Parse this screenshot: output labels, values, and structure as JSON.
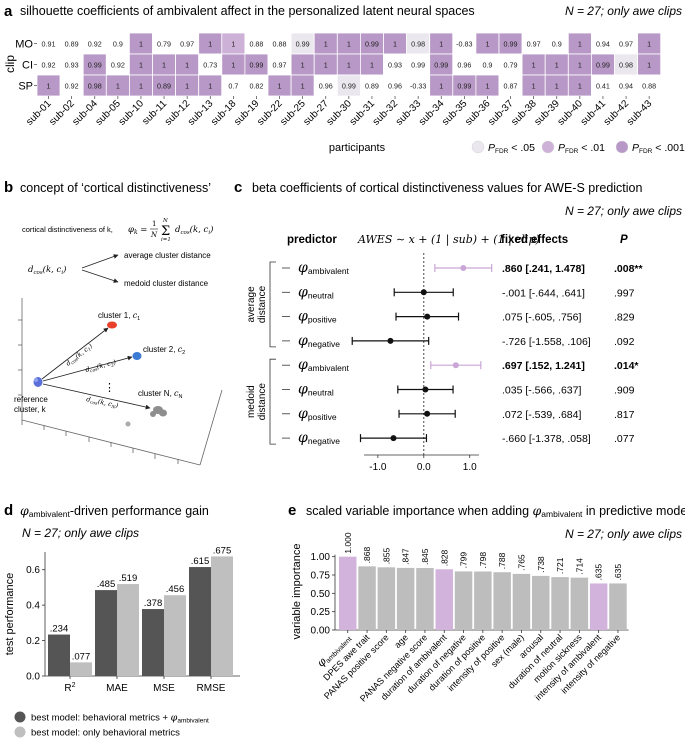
{
  "panel_a": {
    "letter": "a",
    "title": "silhouette coefficients of ambivalent affect in the personalized latent neural spaces",
    "note": "N = 27; only awe clips",
    "ylabel": "clip",
    "xlabel": "participants",
    "rows": [
      "MO",
      "CI",
      "SP"
    ],
    "participants": [
      "sub-01",
      "sub-02",
      "sub-04",
      "sub-05",
      "sub-10",
      "sub-11",
      "sub-12",
      "sub-13",
      "sub-18",
      "sub-19",
      "sub-22",
      "sub-25",
      "sub-27",
      "sub-30",
      "sub-31",
      "sub-32",
      "sub-33",
      "sub-34",
      "sub-35",
      "sub-36",
      "sub-37",
      "sub-38",
      "sub-39",
      "sub-40",
      "sub-41",
      "sub-42",
      "sub-43"
    ],
    "values": [
      [
        "0.91",
        "0.89",
        "0.92",
        "0.9",
        "1",
        "0.79",
        "0.97",
        "1",
        "1",
        "0.88",
        "0.88",
        "0.99",
        "1",
        "1",
        "0.99",
        "1",
        "0.98",
        "1",
        "-0.83",
        "1",
        "0.99",
        "0.97",
        "0.9",
        "1",
        "0.94",
        "0.97",
        "1"
      ],
      [
        "0.92",
        "0.93",
        "0.99",
        "0.92",
        "1",
        "1",
        "1",
        "0.73",
        "1",
        "0.99",
        "0.97",
        "1",
        "1",
        "1",
        "1",
        "0.93",
        "0.99",
        "0.99",
        "0.96",
        "0.9",
        "0.79",
        "1",
        "1",
        "1",
        "0.99",
        "0.98",
        "1"
      ],
      [
        "1",
        "0.92",
        "0.98",
        "1",
        "1",
        "0.89",
        "1",
        "1",
        "0.7",
        "0.82",
        "1",
        "1",
        "0.96",
        "0.99",
        "0.89",
        "0.96",
        "-0.33",
        "1",
        "0.99",
        "1",
        "0.87",
        "1",
        "1",
        "1",
        "0.41",
        "0.94",
        "0.88"
      ]
    ],
    "levels": [
      [
        "0",
        "0",
        "0",
        "0",
        "3",
        "0",
        "0",
        "3",
        "2",
        "0",
        "0",
        "1",
        "3",
        "3",
        "3",
        "3",
        "1",
        "3",
        "0",
        "3",
        "3",
        "0",
        "0",
        "3",
        "0",
        "0",
        "3"
      ],
      [
        "0",
        "0",
        "3",
        "0",
        "3",
        "3",
        "3",
        "0",
        "3",
        "3",
        "0",
        "3",
        "3",
        "3",
        "3",
        "0",
        "0",
        "3",
        "0",
        "0",
        "0",
        "3",
        "3",
        "3",
        "3",
        "1",
        "3"
      ],
      [
        "3",
        "0",
        "3",
        "3",
        "3",
        "3",
        "3",
        "3",
        "0",
        "0",
        "3",
        "3",
        "0",
        "1",
        "0",
        "0",
        "0",
        "3",
        "3",
        "3",
        "0",
        "3",
        "3",
        "3",
        "0",
        "0",
        "0"
      ]
    ],
    "colors": [
      "#ffffff",
      "#ebe7ee",
      "#cdb1d7",
      "#b898c6"
    ],
    "legend": [
      {
        "label_pre": "P",
        "sub": "FDR",
        "label_post": " < .05",
        "color": "#ebe7ee"
      },
      {
        "label_pre": "P",
        "sub": "FDR",
        "label_post": " < .01",
        "color": "#cdb1d7"
      },
      {
        "label_pre": "P",
        "sub": "FDR",
        "label_post": " < .001",
        "color": "#b898c6"
      }
    ]
  },
  "panel_b": {
    "letter": "b",
    "title": "concept of ‘cortical distinctiveness’",
    "formula": "cortical distinctiveness of k, φk = (1/N) Σ dcos(k, ci)",
    "formula_lead": "cortical distinctiveness of k, ",
    "dist": "dcos(k, ci)",
    "avg_label": "average cluster distance",
    "med_label": "medoid cluster distance",
    "cluster1": "cluster 1, c1",
    "cluster2": "cluster 2, c2",
    "clusterN": "cluster N, cN",
    "ref1": "reference",
    "ref2": "cluster, k",
    "d1": "dcos(k, c1)",
    "d2": "dcos(k, c2)",
    "dN": "dcos(k, cN)",
    "dots": "⋮"
  },
  "panel_c": {
    "letter": "c",
    "title": "beta coefficients of cortical distinctiveness values for AWE-S prediction",
    "note": "N = 27; only awe clips",
    "head_predictor": "predictor",
    "model": "AWES ~ x + (1 | sub) + (1 | clip)",
    "head_fixed": "fixed effects",
    "head_p": "P",
    "group1": "average distance",
    "group2": "medoid distance",
    "rows": [
      {
        "pred": "ambivalent",
        "est": 0.86,
        "lo": 0.241,
        "hi": 1.478,
        "fixed": ".860 [.241, 1.478]",
        "p": ".008**",
        "sig": true
      },
      {
        "pred": "neutral",
        "est": -0.001,
        "lo": -0.644,
        "hi": 0.641,
        "fixed": "-.001 [-.644, .641]",
        "p": ".997",
        "sig": false
      },
      {
        "pred": "positive",
        "est": 0.075,
        "lo": -0.605,
        "hi": 0.756,
        "fixed": ".075 [-.605, .756]",
        "p": ".829",
        "sig": false
      },
      {
        "pred": "negative",
        "est": -0.726,
        "lo": -1.558,
        "hi": 0.106,
        "fixed": "-.726 [-1.558, .106]",
        "p": ".092",
        "sig": false
      },
      {
        "pred": "ambivalent",
        "est": 0.697,
        "lo": 0.152,
        "hi": 1.241,
        "fixed": ".697 [.152, 1.241]",
        "p": ".014*",
        "sig": true
      },
      {
        "pred": "neutral",
        "est": 0.035,
        "lo": -0.566,
        "hi": 0.637,
        "fixed": ".035 [-.566, .637]",
        "p": ".909",
        "sig": false
      },
      {
        "pred": "positive",
        "est": 0.072,
        "lo": -0.539,
        "hi": 0.684,
        "fixed": ".072 [-.539, .684]",
        "p": ".817",
        "sig": false
      },
      {
        "pred": "negative",
        "est": -0.66,
        "lo": -1.378,
        "hi": 0.058,
        "fixed": "-.660 [-1.378, .058]",
        "p": ".077",
        "sig": false
      }
    ],
    "xticks": [
      "-1.0",
      "0.0",
      "1.0"
    ],
    "xtick_values": [
      -1.0,
      0.0,
      1.0
    ],
    "xlim": [
      -1.65,
      1.55
    ],
    "colors": {
      "sig": "#c9a6d6",
      "nonsig": "#111111"
    }
  },
  "chart_data": [
    {
      "type": "bar",
      "title": "φambivalent-driven performance gain",
      "note": "N = 27; only awe clips",
      "xlabel": "",
      "ylabel": "test performance",
      "categories": [
        "R2",
        "MAE",
        "MSE",
        "RMSE"
      ],
      "ylim": [
        0,
        0.7
      ],
      "yticks": [
        "0.0",
        "0.2",
        "0.4",
        "0.6"
      ],
      "ytick_values": [
        0,
        0.2,
        0.4,
        0.6
      ],
      "series": [
        {
          "name": "best model: behavioral metrics + φambivalent",
          "values": [
            0.234,
            0.485,
            0.378,
            0.615
          ],
          "labels": [
            ".234",
            ".485",
            ".378",
            ".615"
          ],
          "color": "#555555"
        },
        {
          "name": "best model: only behavioral metrics",
          "values": [
            0.077,
            0.519,
            0.456,
            0.675
          ],
          "labels": [
            ".077",
            ".519",
            ".456",
            ".675"
          ],
          "color": "#bfbfbf"
        }
      ]
    },
    {
      "type": "bar",
      "title": "scaled variable importance when adding φambivalent in predictive model",
      "note": "N = 27; only awe clips",
      "xlabel": "",
      "ylabel": "variable importance",
      "categories": [
        "φambivalent",
        "DPES awe trait",
        "PANAS positive score",
        "age",
        "PANAS negative score",
        "duration of ambivalent",
        "duration of negative",
        "duration of positive",
        "intensity of positive",
        "sex (male)",
        "arousal",
        "duration of neutral",
        "motion sickness",
        "intensity of ambivalent",
        "intensity of negative"
      ],
      "values": [
        1.0,
        0.868,
        0.855,
        0.847,
        0.845,
        0.828,
        0.799,
        0.798,
        0.788,
        0.765,
        0.738,
        0.721,
        0.714,
        0.635,
        0.635
      ],
      "labels": [
        "1.000",
        ".868",
        ".855",
        ".847",
        ".845",
        ".828",
        ".799",
        ".798",
        ".788",
        ".765",
        ".738",
        ".721",
        ".714",
        ".635",
        ".635"
      ],
      "highlight": [
        true,
        false,
        false,
        false,
        false,
        true,
        false,
        false,
        false,
        false,
        false,
        false,
        false,
        true,
        false
      ],
      "colors": {
        "highlight": "#d2b3dc",
        "normal": "#bdbdbd"
      },
      "ylim": [
        0,
        1.05
      ],
      "yticks": [
        "0.00",
        "0.25",
        "0.50",
        "0.75",
        "1.00"
      ],
      "ytick_values": [
        0,
        0.25,
        0.5,
        0.75,
        1.0
      ]
    }
  ],
  "panel_d": {
    "letter": "d"
  },
  "panel_e": {
    "letter": "e"
  }
}
